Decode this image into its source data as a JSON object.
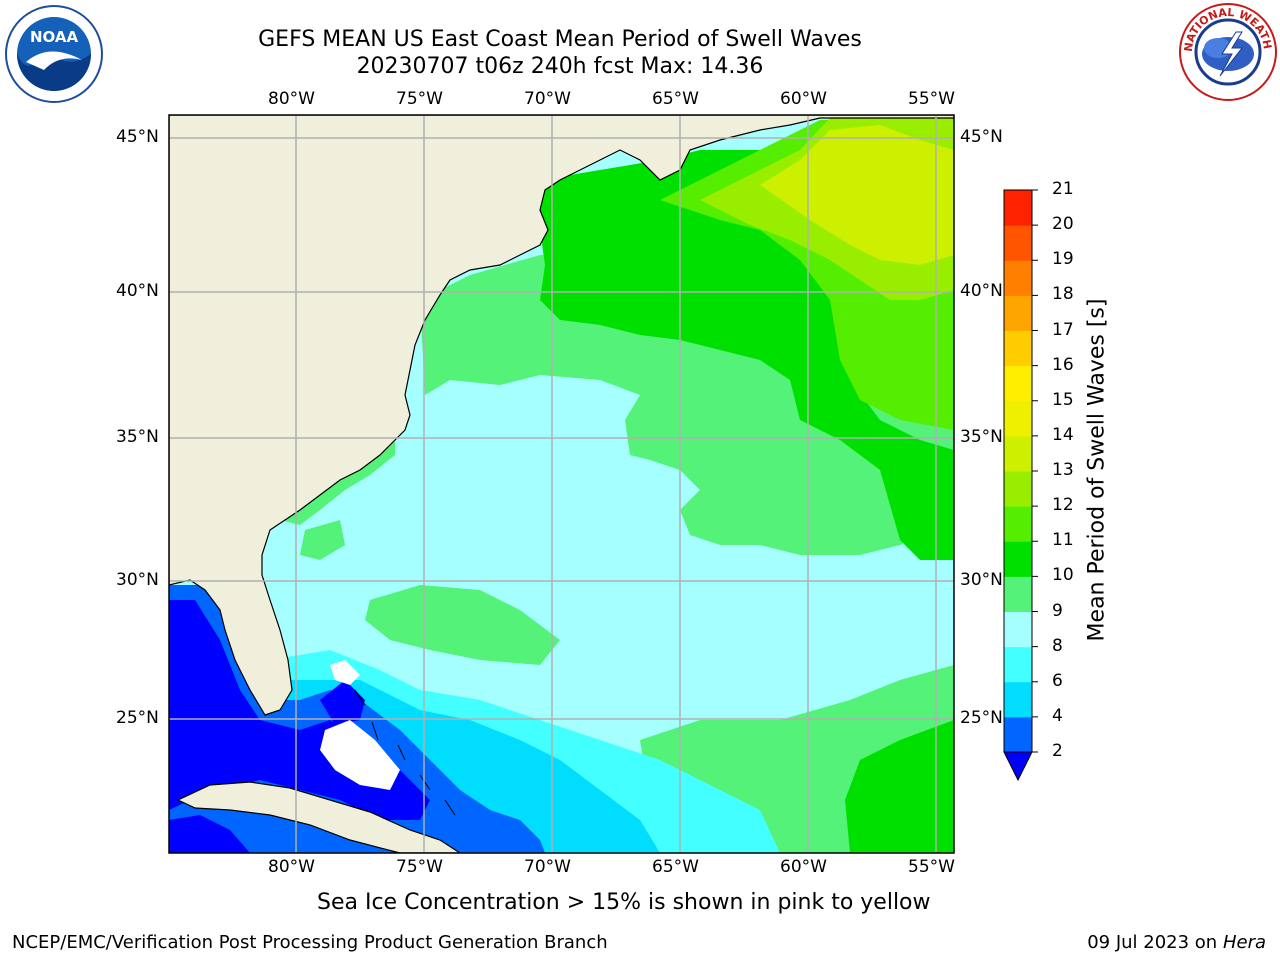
{
  "title": {
    "line1": "GEFS MEAN US East Coast Mean Period of Swell Waves",
    "line2": "20230707 t06z 240h fcst   Max: 14.36"
  },
  "axes": {
    "lon_ticks": [
      "80°W",
      "75°W",
      "70°W",
      "65°W",
      "60°W",
      "55°W"
    ],
    "lat_ticks": [
      "45°N",
      "40°N",
      "35°N",
      "30°N",
      "25°N"
    ]
  },
  "colorbar": {
    "label": "Mean Period of Swell Waves [s]",
    "ticks": [
      "2",
      "4",
      "6",
      "8",
      "9",
      "10",
      "11",
      "12",
      "13",
      "14",
      "15",
      "16",
      "17",
      "18",
      "19",
      "20",
      "21"
    ],
    "colors": [
      "#0066ff",
      "#00ddff",
      "#44ffff",
      "#a6ffff",
      "#55f27a",
      "#00e000",
      "#55ee00",
      "#99ee00",
      "#ccf000",
      "#eef000",
      "#ffee00",
      "#ffcc00",
      "#ffa500",
      "#ff7f00",
      "#ff5500",
      "#ff2200",
      "#ff0000"
    ],
    "under_color": "#0000ff"
  },
  "caption": "Sea Ice Concentration > 15% is shown in pink to yellow",
  "footer": {
    "left": "NCEP/EMC/Verification Post Processing Product Generation Branch",
    "right_date": "09 Jul 2023 on ",
    "right_machine": "Hera"
  },
  "logos": {
    "left_text": "NOAA",
    "right_text": "NATIONAL WEATHER SERVICE"
  },
  "map_colors": {
    "land": "#efefdc",
    "ocean_default": "#a6ffff",
    "grid": "#b0b0b0"
  }
}
